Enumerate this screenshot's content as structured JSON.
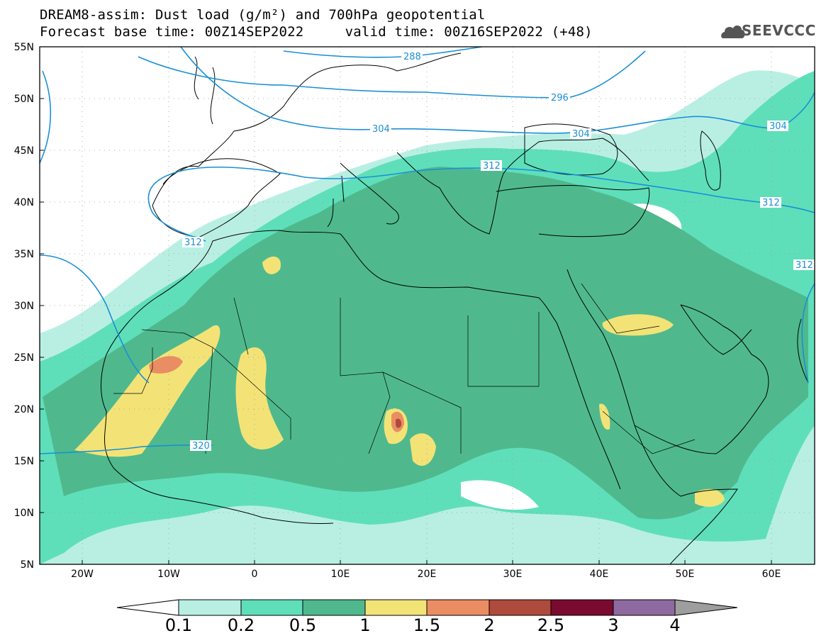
{
  "title_line1": "DREAM8-assim: Dust load (g/m²) and 700hPa geopotential",
  "title_line2": "Forecast base time: 00Z14SEP2022     valid time: 00Z16SEP2022 (+48)",
  "logo_text": "SEEVCCC",
  "map": {
    "lon_range": [
      -25,
      65
    ],
    "lat_range": [
      5,
      55
    ],
    "x_ticks": [
      {
        "lon": -20,
        "label": "20W"
      },
      {
        "lon": -10,
        "label": "10W"
      },
      {
        "lon": 0,
        "label": "0"
      },
      {
        "lon": 10,
        "label": "10E"
      },
      {
        "lon": 20,
        "label": "20E"
      },
      {
        "lon": 30,
        "label": "30E"
      },
      {
        "lon": 40,
        "label": "40E"
      },
      {
        "lon": 50,
        "label": "50E"
      },
      {
        "lon": 60,
        "label": "60E"
      }
    ],
    "y_ticks": [
      {
        "lat": 55,
        "label": "55N"
      },
      {
        "lat": 50,
        "label": "50N"
      },
      {
        "lat": 45,
        "label": "45N"
      },
      {
        "lat": 40,
        "label": "40N"
      },
      {
        "lat": 35,
        "label": "35N"
      },
      {
        "lat": 30,
        "label": "30N"
      },
      {
        "lat": 25,
        "label": "25N"
      },
      {
        "lat": 20,
        "label": "20N"
      },
      {
        "lat": 15,
        "label": "15N"
      },
      {
        "lat": 10,
        "label": "10N"
      },
      {
        "lat": 5,
        "label": "5N"
      }
    ],
    "geopotential_contours": [
      {
        "label": "288",
        "label_lon": 9,
        "label_lat": 53.3
      },
      {
        "label": "296",
        "label_lon": 33,
        "label_lat": 49.7
      },
      {
        "label": "304",
        "label_lon": 6,
        "label_lat": 46.9
      },
      {
        "label": "304",
        "label_lon": 35,
        "label_lat": 46.4
      },
      {
        "label": "304",
        "label_lon": 60,
        "label_lat": 47.2
      },
      {
        "label": "312",
        "label_lon": 18,
        "label_lat": 42.4
      },
      {
        "label": "312",
        "label_lon": 60,
        "label_lat": 40.0
      },
      {
        "label": "312",
        "label_lon": -17,
        "label_lat": 36.6
      },
      {
        "label": "312",
        "label_lon": 63,
        "label_lat": 32.8
      },
      {
        "label": "320",
        "label_lon": -6,
        "label_lat": 16.2
      }
    ],
    "colors": {
      "c01": "#b9efe3",
      "c02": "#5fdfb9",
      "c05": "#4fb98d",
      "c1": "#f3e377",
      "c15": "#ea8d63",
      "c2": "#ae4b3c",
      "c25": "#7a0a2f",
      "c3": "#8e6aa0",
      "c4": "#9e9e9e",
      "contour": "#1a8fd6",
      "coast": "#000000"
    }
  },
  "colorbar": {
    "labels": [
      "0.1",
      "0.2",
      "0.5",
      "1",
      "1.5",
      "2",
      "2.5",
      "3",
      "4"
    ],
    "colors": [
      "#b9efe3",
      "#5fdfb9",
      "#4fb98d",
      "#f3e377",
      "#ea8d63",
      "#ae4b3c",
      "#7a0a2f",
      "#8e6aa0"
    ]
  }
}
